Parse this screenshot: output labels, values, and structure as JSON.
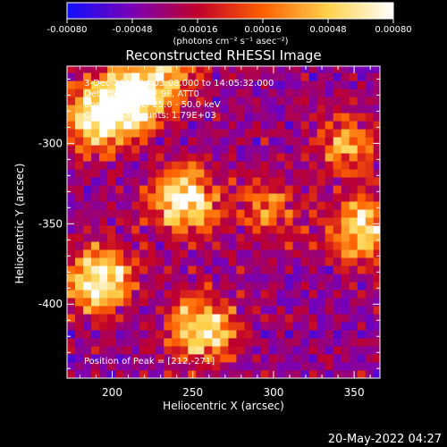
{
  "chart_data": {
    "type": "heatmap",
    "title": "Reconstructed RHESSI Image",
    "xlabel": "Heliocentric X (arcsec)",
    "ylabel": "Heliocentric Y (arcsec)",
    "xlim": [
      172,
      366
    ],
    "ylim": [
      -446,
      -252
    ],
    "xticks": [
      200,
      250,
      300,
      350
    ],
    "yticks": [
      -300,
      -350,
      -400
    ],
    "colorbar": {
      "range": [
        -0.0008,
        0.0008
      ],
      "tick_labels": [
        "-0.00080",
        "-0.00048",
        "-0.00016",
        "0.00016",
        "0.00048",
        "0.00080"
      ],
      "label": "(photons cm⁻² s⁻¹ asec⁻²)",
      "colors": [
        "#1010ff",
        "#7a00b5",
        "#c0002c",
        "#ff6000",
        "#ffd24a",
        "#ffffff"
      ]
    },
    "annotations": [
      "3-Dec-2014 14:03:08.000 to 14:05:32.000",
      "Detectors: 3F 6F 9F, ATT0",
      "Energy Range: 25.0 - 50.0 keV",
      "Clean     Total counts: 1.79E+03",
      "Position of Peak = [212,-271]"
    ],
    "peak": [
      212,
      -271
    ],
    "bright_regions": [
      {
        "x": 190,
        "y": -285,
        "strength": 0.95
      },
      {
        "x": 212,
        "y": -271,
        "strength": 1.0
      },
      {
        "x": 245,
        "y": -335,
        "strength": 0.95
      },
      {
        "x": 192,
        "y": -385,
        "strength": 0.95
      },
      {
        "x": 255,
        "y": -415,
        "strength": 0.85
      },
      {
        "x": 355,
        "y": -355,
        "strength": 0.75
      },
      {
        "x": 345,
        "y": -300,
        "strength": 0.55
      },
      {
        "x": 235,
        "y": -255,
        "strength": 0.6
      },
      {
        "x": 298,
        "y": -340,
        "strength": 0.45
      }
    ]
  },
  "footer_date": "20-May-2022 04:27"
}
